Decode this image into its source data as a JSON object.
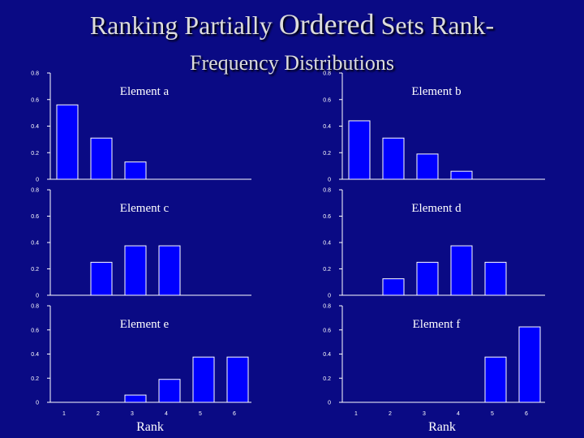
{
  "slide": {
    "title_part1": "Ranking Partially",
    "title_part2": "Ordered",
    "title_part3": "Sets Rank-",
    "title_line2": "Frequency Distributions"
  },
  "colors": {
    "background": "#0a0a84",
    "bar": "#0000ff",
    "bar_edge": "#ffffff",
    "axis": "#ffffff"
  },
  "chart_data": [
    {
      "type": "bar",
      "title": "Element a",
      "categories": [
        "1",
        "2",
        "3",
        "4",
        "5",
        "6"
      ],
      "values": [
        0.56,
        0.31,
        0.13,
        0,
        0,
        0
      ],
      "ylim": [
        0,
        0.8
      ],
      "yticks": [
        "0",
        "0.2",
        "0.4",
        "0.6",
        "0.8"
      ],
      "xlabel": "",
      "grid": false
    },
    {
      "type": "bar",
      "title": "Element b",
      "categories": [
        "1",
        "2",
        "3",
        "4",
        "5",
        "6"
      ],
      "values": [
        0.44,
        0.31,
        0.19,
        0.06,
        0,
        0
      ],
      "ylim": [
        0,
        0.8
      ],
      "yticks": [
        "0",
        "0.2",
        "0.4",
        "0.6",
        "0.8"
      ],
      "xlabel": "",
      "grid": false
    },
    {
      "type": "bar",
      "title": "Element c",
      "categories": [
        "1",
        "2",
        "3",
        "4",
        "5",
        "6"
      ],
      "values": [
        0,
        0.25,
        0.375,
        0.375,
        0,
        0
      ],
      "ylim": [
        0,
        0.8
      ],
      "yticks": [
        "0",
        "0.2",
        "0.4",
        "0.6",
        "0.8"
      ],
      "xlabel": "",
      "grid": false
    },
    {
      "type": "bar",
      "title": "Element d",
      "categories": [
        "1",
        "2",
        "3",
        "4",
        "5",
        "6"
      ],
      "values": [
        0,
        0.125,
        0.25,
        0.375,
        0.25,
        0
      ],
      "ylim": [
        0,
        0.8
      ],
      "yticks": [
        "0",
        "0.2",
        "0.4",
        "0.6",
        "0.8"
      ],
      "xlabel": "",
      "grid": false
    },
    {
      "type": "bar",
      "title": "Element e",
      "categories": [
        "1",
        "2",
        "3",
        "4",
        "5",
        "6"
      ],
      "values": [
        0,
        0,
        0.06,
        0.19,
        0.375,
        0.375
      ],
      "ylim": [
        0,
        0.8
      ],
      "yticks": [
        "0",
        "0.2",
        "0.4",
        "0.6",
        "0.8"
      ],
      "xticks": [
        "1",
        "2",
        "3",
        "4",
        "5",
        "6"
      ],
      "xlabel": "Rank",
      "grid": false
    },
    {
      "type": "bar",
      "title": "Element f",
      "categories": [
        "1",
        "2",
        "3",
        "4",
        "5",
        "6"
      ],
      "values": [
        0,
        0,
        0,
        0,
        0.375,
        0.625
      ],
      "ylim": [
        0,
        0.8
      ],
      "yticks": [
        "0",
        "0.2",
        "0.4",
        "0.6",
        "0.8"
      ],
      "xticks": [
        "1",
        "2",
        "3",
        "4",
        "5",
        "6"
      ],
      "xlabel": "Rank",
      "grid": false
    }
  ]
}
